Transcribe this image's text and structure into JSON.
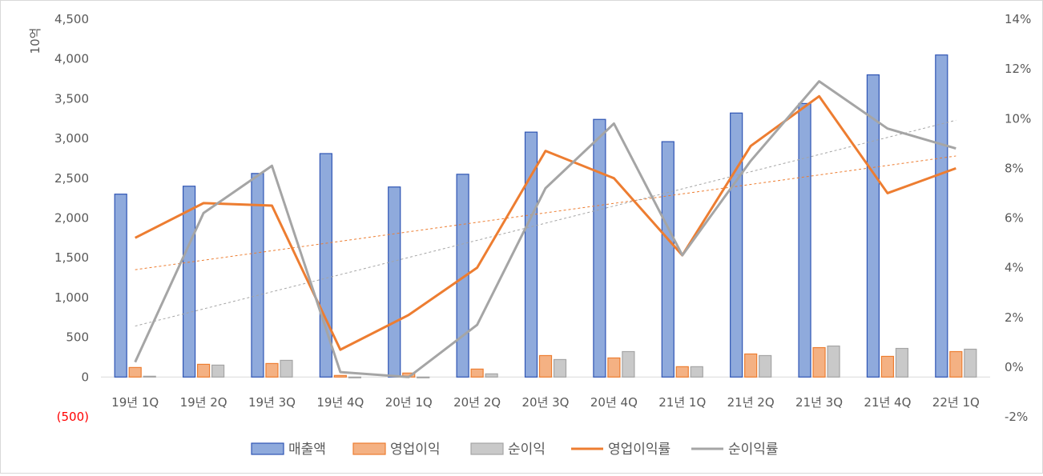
{
  "chart_data": {
    "type": "bar",
    "categories": [
      "19년 1Q",
      "19년 2Q",
      "19년 3Q",
      "19년 4Q",
      "20년 1Q",
      "20년 2Q",
      "20년 3Q",
      "20년 4Q",
      "21년 1Q",
      "21년 2Q",
      "21년 3Q",
      "21년 4Q",
      "22년 1Q"
    ],
    "y_unit_label": "10억",
    "ylim": [
      -500,
      4500
    ],
    "y_ticks": [
      -500,
      0,
      500,
      1000,
      1500,
      2000,
      2500,
      3000,
      3500,
      4000,
      4500
    ],
    "y_tick_labels": [
      "(500)",
      "0",
      "500",
      "1,000",
      "1,500",
      "2,000",
      "2,500",
      "3,000",
      "3,500",
      "4,000",
      "4,500"
    ],
    "y2lim": [
      -2,
      14
    ],
    "y2_ticks": [
      -2,
      0,
      2,
      4,
      6,
      8,
      10,
      12,
      14
    ],
    "y2_tick_labels": [
      "-2%",
      "0%",
      "2%",
      "4%",
      "6%",
      "8%",
      "10%",
      "12%",
      "14%"
    ],
    "series": [
      {
        "name": "매출액",
        "kind": "bar",
        "axis": "left",
        "color": "#8faadc",
        "border": "#2f55b4",
        "values": [
          2300,
          2400,
          2560,
          2810,
          2390,
          2550,
          3080,
          3240,
          2960,
          3320,
          3440,
          3800,
          4050
        ]
      },
      {
        "name": "영업이익",
        "kind": "bar",
        "axis": "left",
        "color": "#f4b183",
        "border": "#ed7d31",
        "values": [
          120,
          160,
          170,
          20,
          50,
          100,
          270,
          240,
          130,
          290,
          370,
          260,
          320
        ]
      },
      {
        "name": "순이익",
        "kind": "bar",
        "axis": "left",
        "color": "#c9c9c9",
        "border": "#a5a5a5",
        "values": [
          10,
          150,
          210,
          -10,
          -10,
          40,
          220,
          320,
          130,
          270,
          390,
          360,
          350
        ]
      },
      {
        "name": "영업이익률",
        "kind": "line",
        "axis": "right",
        "color": "#ed7d31",
        "values": [
          5.2,
          6.6,
          6.5,
          0.7,
          2.1,
          4.0,
          8.7,
          7.6,
          4.5,
          8.9,
          10.9,
          7.0,
          8.0
        ]
      },
      {
        "name": "순이익률",
        "kind": "line",
        "axis": "right",
        "color": "#a5a5a5",
        "values": [
          0.2,
          6.2,
          8.1,
          -0.2,
          -0.4,
          1.7,
          7.2,
          9.8,
          4.5,
          8.3,
          11.5,
          9.6,
          8.8
        ]
      }
    ],
    "trendlines": [
      {
        "series": "영업이익률",
        "color": "#ed7d31",
        "style": "dashed"
      },
      {
        "series": "순이익률",
        "color": "#a5a5a5",
        "style": "dashed"
      }
    ],
    "legend_position": "bottom",
    "colors": {
      "negative_tick": "#ff0000",
      "axis_text": "#595959",
      "baseline": "#d9d9d9"
    }
  }
}
